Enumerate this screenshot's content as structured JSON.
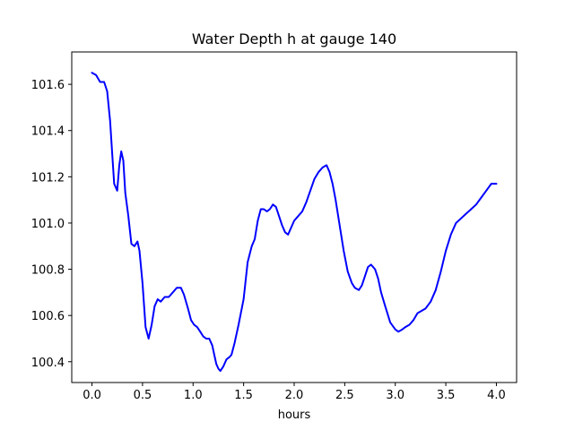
{
  "chart_data": {
    "type": "line",
    "title": "Water Depth h at gauge 140",
    "xlabel": "hours",
    "ylabel": "",
    "xlim": [
      -0.2,
      4.2
    ],
    "ylim": [
      100.31,
      101.74
    ],
    "xticks": [
      0.0,
      0.5,
      1.0,
      1.5,
      2.0,
      2.5,
      3.0,
      3.5,
      4.0
    ],
    "xtick_labels": [
      "0.0",
      "0.5",
      "1.0",
      "1.5",
      "2.0",
      "2.5",
      "3.0",
      "3.5",
      "4.0"
    ],
    "yticks": [
      100.4,
      100.6,
      100.8,
      101.0,
      101.2,
      101.4,
      101.6
    ],
    "ytick_labels": [
      "100.4",
      "100.6",
      "100.8",
      "101.0",
      "101.2",
      "101.4",
      "101.6"
    ],
    "grid": false,
    "legend": false,
    "series": [
      {
        "color": "#0000ff",
        "x": [
          0.0,
          0.04,
          0.08,
          0.12,
          0.15,
          0.18,
          0.2,
          0.22,
          0.25,
          0.27,
          0.29,
          0.31,
          0.33,
          0.36,
          0.39,
          0.42,
          0.45,
          0.47,
          0.5,
          0.53,
          0.56,
          0.59,
          0.62,
          0.65,
          0.68,
          0.72,
          0.76,
          0.8,
          0.84,
          0.88,
          0.91,
          0.95,
          0.98,
          1.01,
          1.04,
          1.07,
          1.1,
          1.13,
          1.16,
          1.19,
          1.21,
          1.23,
          1.25,
          1.27,
          1.3,
          1.33,
          1.36,
          1.38,
          1.41,
          1.45,
          1.5,
          1.54,
          1.58,
          1.61,
          1.64,
          1.67,
          1.7,
          1.73,
          1.76,
          1.79,
          1.82,
          1.85,
          1.88,
          1.91,
          1.94,
          1.97,
          2.0,
          2.04,
          2.08,
          2.12,
          2.16,
          2.2,
          2.24,
          2.28,
          2.32,
          2.35,
          2.38,
          2.41,
          2.45,
          2.49,
          2.53,
          2.57,
          2.6,
          2.64,
          2.67,
          2.7,
          2.73,
          2.76,
          2.8,
          2.83,
          2.86,
          2.9,
          2.95,
          3.0,
          3.03,
          3.07,
          3.1,
          3.14,
          3.18,
          3.22,
          3.26,
          3.3,
          3.35,
          3.4,
          3.45,
          3.5,
          3.55,
          3.6,
          3.65,
          3.7,
          3.75,
          3.8,
          3.85,
          3.9,
          3.95,
          4.0
        ],
        "values": [
          101.65,
          101.64,
          101.61,
          101.61,
          101.57,
          101.44,
          101.3,
          101.17,
          101.14,
          101.25,
          101.31,
          101.27,
          101.13,
          101.03,
          100.91,
          100.9,
          100.92,
          100.88,
          100.74,
          100.55,
          100.5,
          100.56,
          100.64,
          100.67,
          100.66,
          100.68,
          100.68,
          100.7,
          100.72,
          100.72,
          100.69,
          100.63,
          100.58,
          100.56,
          100.55,
          100.53,
          100.51,
          100.5,
          100.5,
          100.47,
          100.43,
          100.39,
          100.37,
          100.36,
          100.38,
          100.41,
          100.42,
          100.43,
          100.48,
          100.56,
          100.67,
          100.83,
          100.9,
          100.93,
          101.01,
          101.06,
          101.06,
          101.05,
          101.06,
          101.08,
          101.07,
          101.03,
          100.99,
          100.96,
          100.95,
          100.98,
          101.01,
          101.03,
          101.05,
          101.09,
          101.14,
          101.19,
          101.22,
          101.24,
          101.25,
          101.22,
          101.17,
          101.1,
          100.99,
          100.88,
          100.79,
          100.74,
          100.72,
          100.71,
          100.73,
          100.77,
          100.81,
          100.82,
          100.8,
          100.76,
          100.7,
          100.64,
          100.57,
          100.54,
          100.53,
          100.54,
          100.55,
          100.56,
          100.58,
          100.61,
          100.62,
          100.63,
          100.66,
          100.71,
          100.79,
          100.88,
          100.95,
          101.0,
          101.02,
          101.04,
          101.06,
          101.08,
          101.11,
          101.14,
          101.17,
          101.17
        ]
      }
    ]
  }
}
